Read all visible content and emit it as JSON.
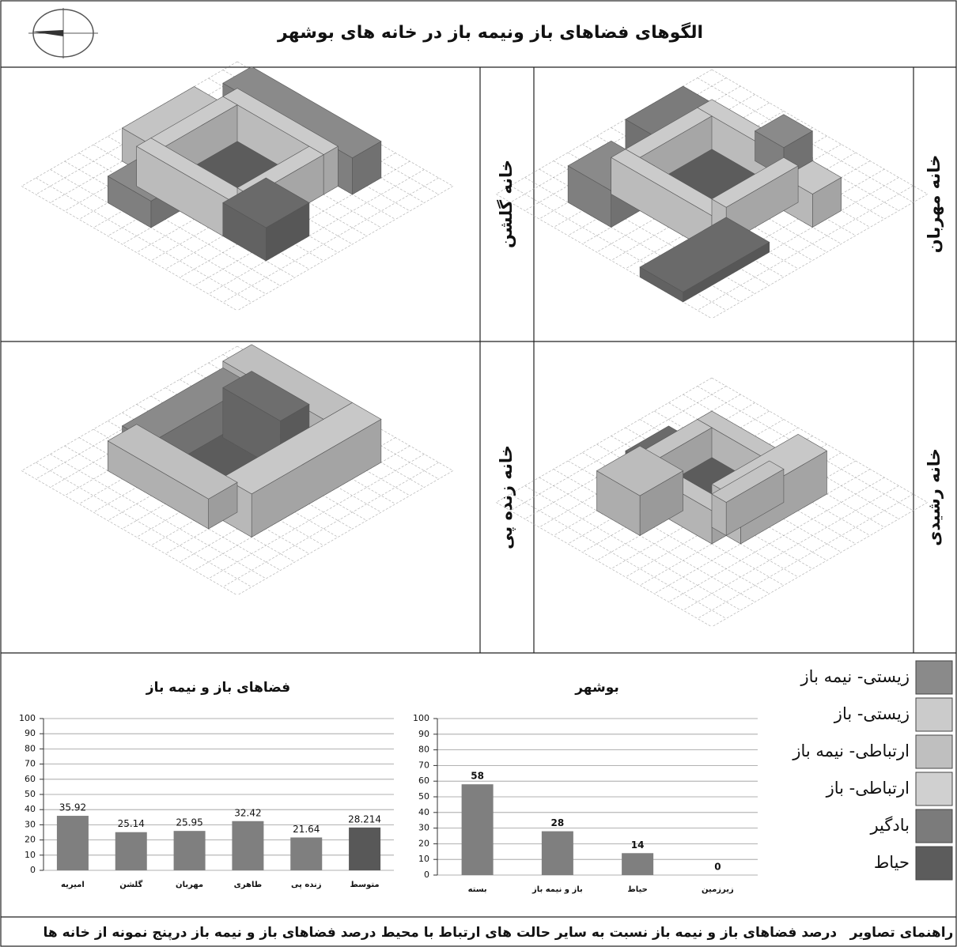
{
  "header": {
    "title": "الگوهای فضاهای باز ونیمه باز در خانه های بوشهر"
  },
  "panels": [
    {
      "label": "خانه گلشن"
    },
    {
      "label": "خانه مهربان"
    },
    {
      "label": "خانه زنده پی"
    },
    {
      "label": "خانه رشیدی"
    }
  ],
  "chart_data": [
    {
      "type": "bar",
      "title": "فضاهای باز و نیمه باز",
      "categories": [
        "امیریه",
        "گلشن",
        "مهربان",
        "طاهری",
        "زنده پی",
        "متوسط"
      ],
      "values": [
        35.92,
        25.14,
        25.95,
        32.42,
        21.64,
        28.214
      ],
      "colors": [
        "#7f7f7f",
        "#7f7f7f",
        "#7f7f7f",
        "#7f7f7f",
        "#7f7f7f",
        "#585858"
      ],
      "ylim": [
        0,
        100
      ],
      "yticks": [
        0,
        10,
        20,
        30,
        40,
        50,
        60,
        70,
        80,
        90,
        100
      ],
      "grid": true
    },
    {
      "type": "bar",
      "title": "بوشهر",
      "categories": [
        "بسته",
        "باز و نیمه باز",
        "حیاط",
        "زیرزمین"
      ],
      "values": [
        58,
        28,
        14,
        0
      ],
      "colors": [
        "#7f7f7f",
        "#7f7f7f",
        "#7f7f7f",
        "#7f7f7f"
      ],
      "ylim": [
        0,
        100
      ],
      "yticks": [
        0,
        10,
        20,
        30,
        40,
        50,
        60,
        70,
        80,
        90,
        100
      ],
      "grid": true
    }
  ],
  "legend": [
    {
      "label": "زیستی- نیمه باز",
      "color": "#8a8a8a"
    },
    {
      "label": "زیستی- باز",
      "color": "#cbcbcb"
    },
    {
      "label": "ارتباطی- نیمه باز",
      "color": "#bfbfbf"
    },
    {
      "label": "ارتباطی- باز",
      "color": "#d0d0d0"
    },
    {
      "label": "بادگیر",
      "color": "#7b7b7b"
    },
    {
      "label": "حیاط",
      "color": "#5c5c5c"
    }
  ],
  "captions": [
    "درصد فضاهای باز و نیمه باز درپنج نمونه از خانه ها",
    "درصد فضاهای باز و نیمه باز نسبت به سایر حالت های ارتباط با محیط",
    "راهنمای تصاویر"
  ]
}
